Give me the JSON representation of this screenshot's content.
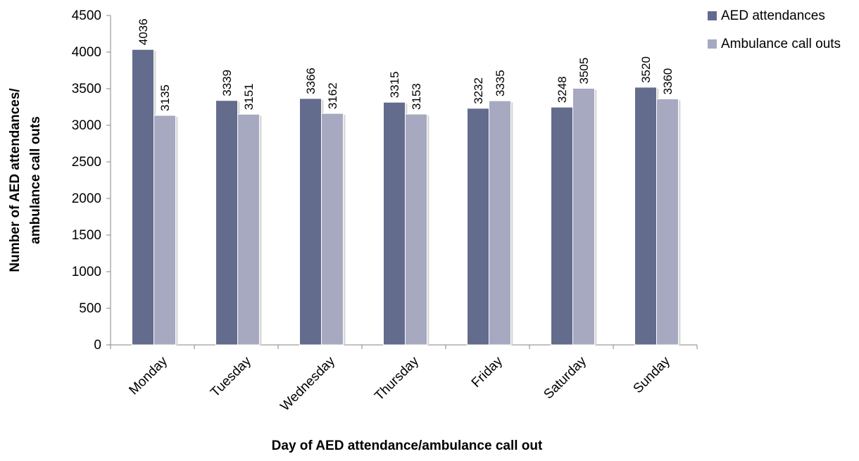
{
  "chart_data": {
    "type": "bar",
    "title": "",
    "xlabel": "Day of AED attendance/ambulance call out",
    "ylabel_lines": [
      "Number of AED attendances/",
      "ambulance call outs"
    ],
    "categories": [
      "Monday",
      "Tuesday",
      "Wednesday",
      "Thursday",
      "Friday",
      "Saturday",
      "Sunday"
    ],
    "series": [
      {
        "name": "AED attendances",
        "color": "#636c8c",
        "values": [
          4036,
          3339,
          3366,
          3315,
          3232,
          3248,
          3520
        ]
      },
      {
        "name": "Ambulance call outs",
        "color": "#a6a9c0",
        "values": [
          3135,
          3151,
          3162,
          3153,
          3335,
          3505,
          3360
        ]
      }
    ],
    "ylim": [
      0,
      4500
    ],
    "yticks": [
      0,
      500,
      1000,
      1500,
      2000,
      2500,
      3000,
      3500,
      4000,
      4500
    ],
    "ytick_labels": [
      "0",
      "500",
      "1000",
      "1500",
      "2000",
      "2500",
      "3000",
      "3500",
      "4000",
      "4500"
    ],
    "grid": false,
    "legend_position": "top-right"
  }
}
